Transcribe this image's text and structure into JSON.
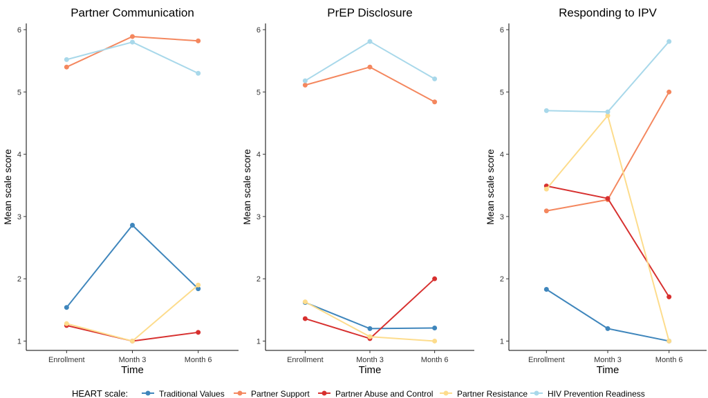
{
  "legend": {
    "title": "HEART scale:",
    "placement": "bottom"
  },
  "chart_data": [
    {
      "type": "line",
      "title": "Partner Communication",
      "xlabel": "Time",
      "ylabel": "Mean scale score",
      "categories": [
        "Enrollment",
        "Month 3",
        "Month 6"
      ],
      "ylim": [
        0.85,
        6.1
      ],
      "yticks": [
        1,
        2,
        3,
        4,
        5,
        6
      ],
      "series": [
        {
          "name": "Traditional Values",
          "color": "#3F86BC",
          "values": [
            1.54,
            2.86,
            1.84
          ]
        },
        {
          "name": "Partner Support",
          "color": "#F4875E",
          "values": [
            5.4,
            5.89,
            5.82
          ]
        },
        {
          "name": "Partner Abuse and Control",
          "color": "#D7302F",
          "values": [
            1.25,
            1.0,
            1.14
          ]
        },
        {
          "name": "Partner Resistance",
          "color": "#FDDC8C",
          "values": [
            1.28,
            1.0,
            1.9
          ]
        },
        {
          "name": "HIV Prevention Readiness",
          "color": "#A8D8EA",
          "values": [
            5.52,
            5.8,
            5.3
          ]
        }
      ]
    },
    {
      "type": "line",
      "title": "PrEP Disclosure",
      "xlabel": "Time",
      "ylabel": "Mean scale score",
      "categories": [
        "Enrollment",
        "Month 3",
        "Month 6"
      ],
      "ylim": [
        0.85,
        6.1
      ],
      "yticks": [
        1,
        2,
        3,
        4,
        5,
        6
      ],
      "series": [
        {
          "name": "Traditional Values",
          "color": "#3F86BC",
          "values": [
            1.62,
            1.2,
            1.21
          ]
        },
        {
          "name": "Partner Support",
          "color": "#F4875E",
          "values": [
            5.11,
            5.4,
            4.84
          ]
        },
        {
          "name": "Partner Abuse and Control",
          "color": "#D7302F",
          "values": [
            1.36,
            1.04,
            2.0
          ]
        },
        {
          "name": "Partner Resistance",
          "color": "#FDDC8C",
          "values": [
            1.63,
            1.07,
            1.0
          ]
        },
        {
          "name": "HIV Prevention Readiness",
          "color": "#A8D8EA",
          "values": [
            5.18,
            5.81,
            5.21
          ]
        }
      ]
    },
    {
      "type": "line",
      "title": "Responding to IPV",
      "xlabel": "Time",
      "ylabel": "Mean scale score",
      "categories": [
        "Enrollment",
        "Month 3",
        "Month 6"
      ],
      "ylim": [
        0.85,
        6.1
      ],
      "yticks": [
        1,
        2,
        3,
        4,
        5,
        6
      ],
      "series": [
        {
          "name": "Traditional Values",
          "color": "#3F86BC",
          "values": [
            1.83,
            1.2,
            1.0
          ]
        },
        {
          "name": "Partner Support",
          "color": "#F4875E",
          "values": [
            3.09,
            3.27,
            5.0
          ]
        },
        {
          "name": "Partner Abuse and Control",
          "color": "#D7302F",
          "values": [
            3.49,
            3.29,
            1.71
          ]
        },
        {
          "name": "Partner Resistance",
          "color": "#FDDC8C",
          "values": [
            3.44,
            4.62,
            1.0
          ]
        },
        {
          "name": "HIV Prevention Readiness",
          "color": "#A8D8EA",
          "values": [
            4.7,
            4.68,
            5.81
          ]
        }
      ]
    }
  ]
}
